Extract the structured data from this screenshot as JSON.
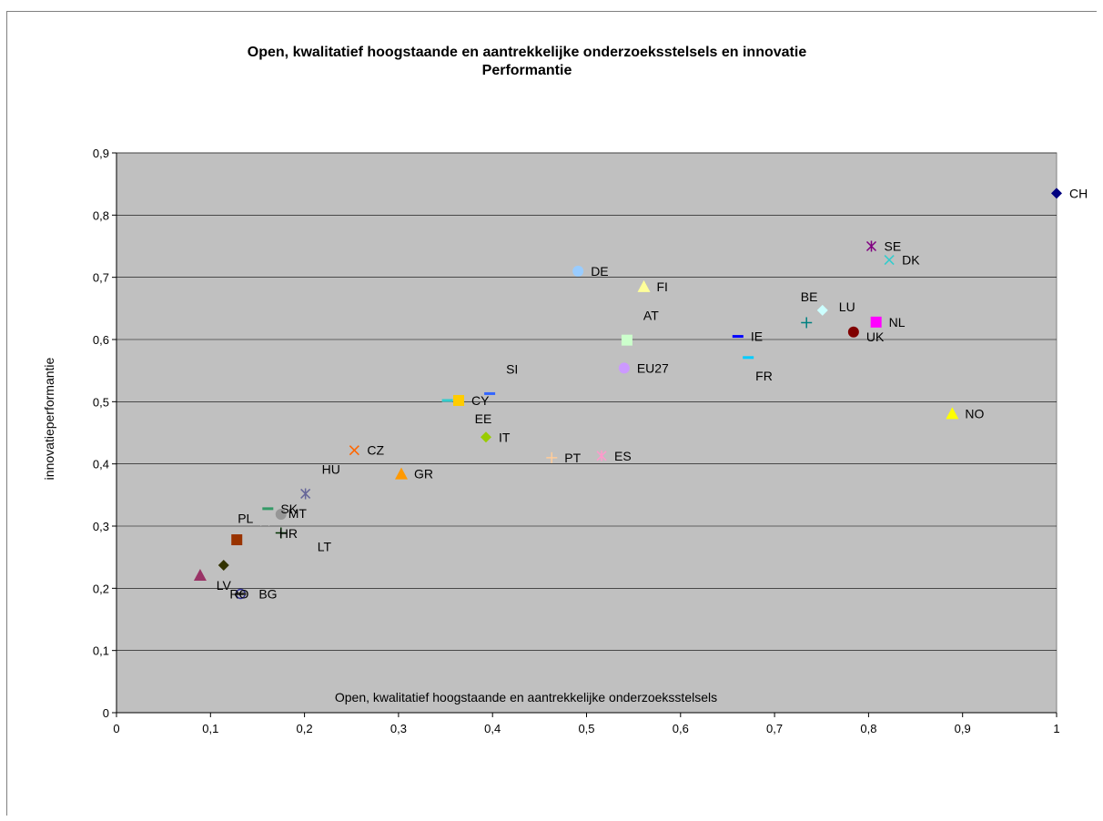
{
  "chart_data": {
    "type": "scatter",
    "title": "Open, kwalitatief hoogstaande en aantrekkelijke onderzoeksstelsels en innovatie",
    "subtitle": "Performantie",
    "xlabel": "Open, kwalitatief hoogstaande en aantrekkelijke onderzoeksstelsels",
    "ylabel": "innovatieperformantie",
    "xlim": [
      0,
      1
    ],
    "ylim": [
      0,
      0.9
    ],
    "xticks": [
      "0",
      "0,1",
      "0,2",
      "0,3",
      "0,4",
      "0,5",
      "0,6",
      "0,7",
      "0,8",
      "0,9",
      "1"
    ],
    "yticks": [
      "0",
      "0,1",
      "0,2",
      "0,3",
      "0,4",
      "0,5",
      "0,6",
      "0,7",
      "0,8",
      "0,9"
    ],
    "grid": "horizontal",
    "plot_background": "#c0c0c0",
    "points": [
      {
        "label": "CH",
        "x": 1.0,
        "y": 0.835,
        "marker": "diamond",
        "color": "#000080",
        "lpos": "right"
      },
      {
        "label": "SE",
        "x": 0.803,
        "y": 0.75,
        "marker": "star",
        "color": "#800080",
        "lpos": "right"
      },
      {
        "label": "DK",
        "x": 0.822,
        "y": 0.728,
        "marker": "x",
        "color": "#33cccc",
        "lpos": "right"
      },
      {
        "label": "DE",
        "x": 0.491,
        "y": 0.71,
        "marker": "circle",
        "color": "#99ccff",
        "lpos": "right"
      },
      {
        "label": "FI",
        "x": 0.561,
        "y": 0.685,
        "marker": "triangle",
        "color": "#ffff99",
        "lpos": "right"
      },
      {
        "label": "BE",
        "x": 0.751,
        "y": 0.647,
        "marker": "diamond",
        "color": "#ccffff",
        "lpos": "above-left"
      },
      {
        "label": "LU",
        "x": 0.751,
        "y": 0.647,
        "marker": "none",
        "color": "#000000",
        "lpos": "left"
      },
      {
        "label": "NL",
        "x": 0.808,
        "y": 0.628,
        "marker": "square",
        "color": "#ff00ff",
        "lpos": "right"
      },
      {
        "label": "UK",
        "x": 0.784,
        "y": 0.612,
        "marker": "circle",
        "color": "#800000",
        "lpos": "right-below"
      },
      {
        "label": "",
        "x": 0.734,
        "y": 0.627,
        "marker": "plus",
        "color": "#008080",
        "lpos": "none"
      },
      {
        "label": "IE",
        "x": 0.661,
        "y": 0.605,
        "marker": "dash",
        "color": "#0000ff",
        "lpos": "right"
      },
      {
        "label": "AT",
        "x": 0.543,
        "y": 0.599,
        "marker": "square",
        "color": "#ccffcc",
        "lpos": "above-right"
      },
      {
        "label": "FR",
        "x": 0.672,
        "y": 0.571,
        "marker": "dash",
        "color": "#00ccff",
        "lpos": "below-right"
      },
      {
        "label": "EU27",
        "x": 0.54,
        "y": 0.554,
        "marker": "circle",
        "color": "#cc99ff",
        "lpos": "right"
      },
      {
        "label": "SI",
        "x": 0.397,
        "y": 0.513,
        "marker": "dash",
        "color": "#3366ff",
        "lpos": "above-right"
      },
      {
        "label": "CY",
        "x": 0.364,
        "y": 0.502,
        "marker": "square",
        "color": "#ffcc00",
        "lpos": "right"
      },
      {
        "label": "EE",
        "x": 0.352,
        "y": 0.502,
        "marker": "dash",
        "color": "#33cccc",
        "lpos": "below-right"
      },
      {
        "label": "IT",
        "x": 0.393,
        "y": 0.443,
        "marker": "diamond",
        "color": "#99cc00",
        "lpos": "right"
      },
      {
        "label": "CZ",
        "x": 0.253,
        "y": 0.422,
        "marker": "x",
        "color": "#ff6600",
        "lpos": "right"
      },
      {
        "label": "PT",
        "x": 0.463,
        "y": 0.41,
        "marker": "plus",
        "color": "#ffcc99",
        "lpos": "right"
      },
      {
        "label": "ES",
        "x": 0.516,
        "y": 0.413,
        "marker": "star",
        "color": "#ff99cc",
        "lpos": "right"
      },
      {
        "label": "GR",
        "x": 0.303,
        "y": 0.384,
        "marker": "triangle",
        "color": "#ff9900",
        "lpos": "right"
      },
      {
        "label": "HU",
        "x": 0.201,
        "y": 0.352,
        "marker": "star",
        "color": "#666699",
        "lpos": "above-right"
      },
      {
        "label": "SK",
        "x": 0.161,
        "y": 0.328,
        "marker": "dash",
        "color": "#339966",
        "lpos": "right-below"
      },
      {
        "label": "MT",
        "x": 0.175,
        "y": 0.319,
        "marker": "circle",
        "color": "#969696",
        "lpos": "right"
      },
      {
        "label": "PL",
        "x": 0.158,
        "y": 0.308,
        "marker": "x",
        "color": "#c0c0c0",
        "lpos": "left"
      },
      {
        "label": "HR",
        "x": 0.175,
        "y": 0.288,
        "marker": "none",
        "color": "#000000",
        "lpos": "right"
      },
      {
        "label": "LT",
        "x": 0.175,
        "y": 0.289,
        "marker": "plus",
        "color": "#003300",
        "lpos": "right-far"
      },
      {
        "label": "",
        "x": 0.128,
        "y": 0.278,
        "marker": "square",
        "color": "#993300",
        "lpos": "none"
      },
      {
        "label": "LV",
        "x": 0.114,
        "y": 0.237,
        "marker": "diamond",
        "color": "#333300",
        "lpos": "below-right"
      },
      {
        "label": "",
        "x": 0.089,
        "y": 0.221,
        "marker": "triangle",
        "color": "#993366",
        "lpos": "none"
      },
      {
        "label": "RO",
        "x": 0.132,
        "y": 0.191,
        "marker": "circle-open",
        "color": "#333399",
        "lpos": "left-ro"
      },
      {
        "label": "BG",
        "x": 0.132,
        "y": 0.191,
        "marker": "dash",
        "color": "#333333",
        "lpos": "right-bg"
      },
      {
        "label": "NO",
        "x": 0.889,
        "y": 0.481,
        "marker": "triangle",
        "color": "#ffff00",
        "lpos": "right"
      }
    ]
  }
}
